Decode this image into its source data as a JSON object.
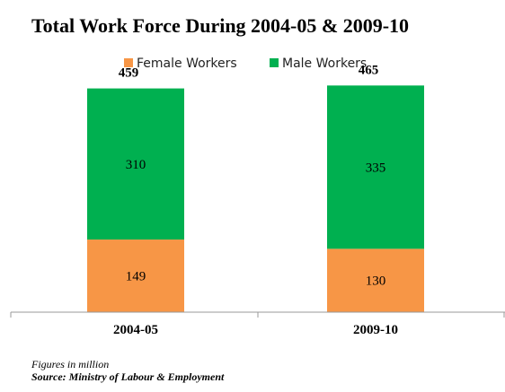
{
  "chart_data": {
    "type": "bar",
    "stacked": true,
    "title": "Total Work Force During 2004-05 & 2009-10",
    "categories": [
      "2004-05",
      "2009-10"
    ],
    "series": [
      {
        "name": "Female Workers",
        "values": [
          149,
          130
        ],
        "color": "#f79646"
      },
      {
        "name": "Male Workers",
        "values": [
          310,
          335
        ],
        "color": "#00b050"
      }
    ],
    "totals": [
      459,
      465
    ],
    "legend_position": "top",
    "grid": false,
    "ylim": [
      0,
      530
    ]
  },
  "footnote": {
    "units": "Figures in million",
    "source": "Source: Ministry of Labour & Employment"
  }
}
